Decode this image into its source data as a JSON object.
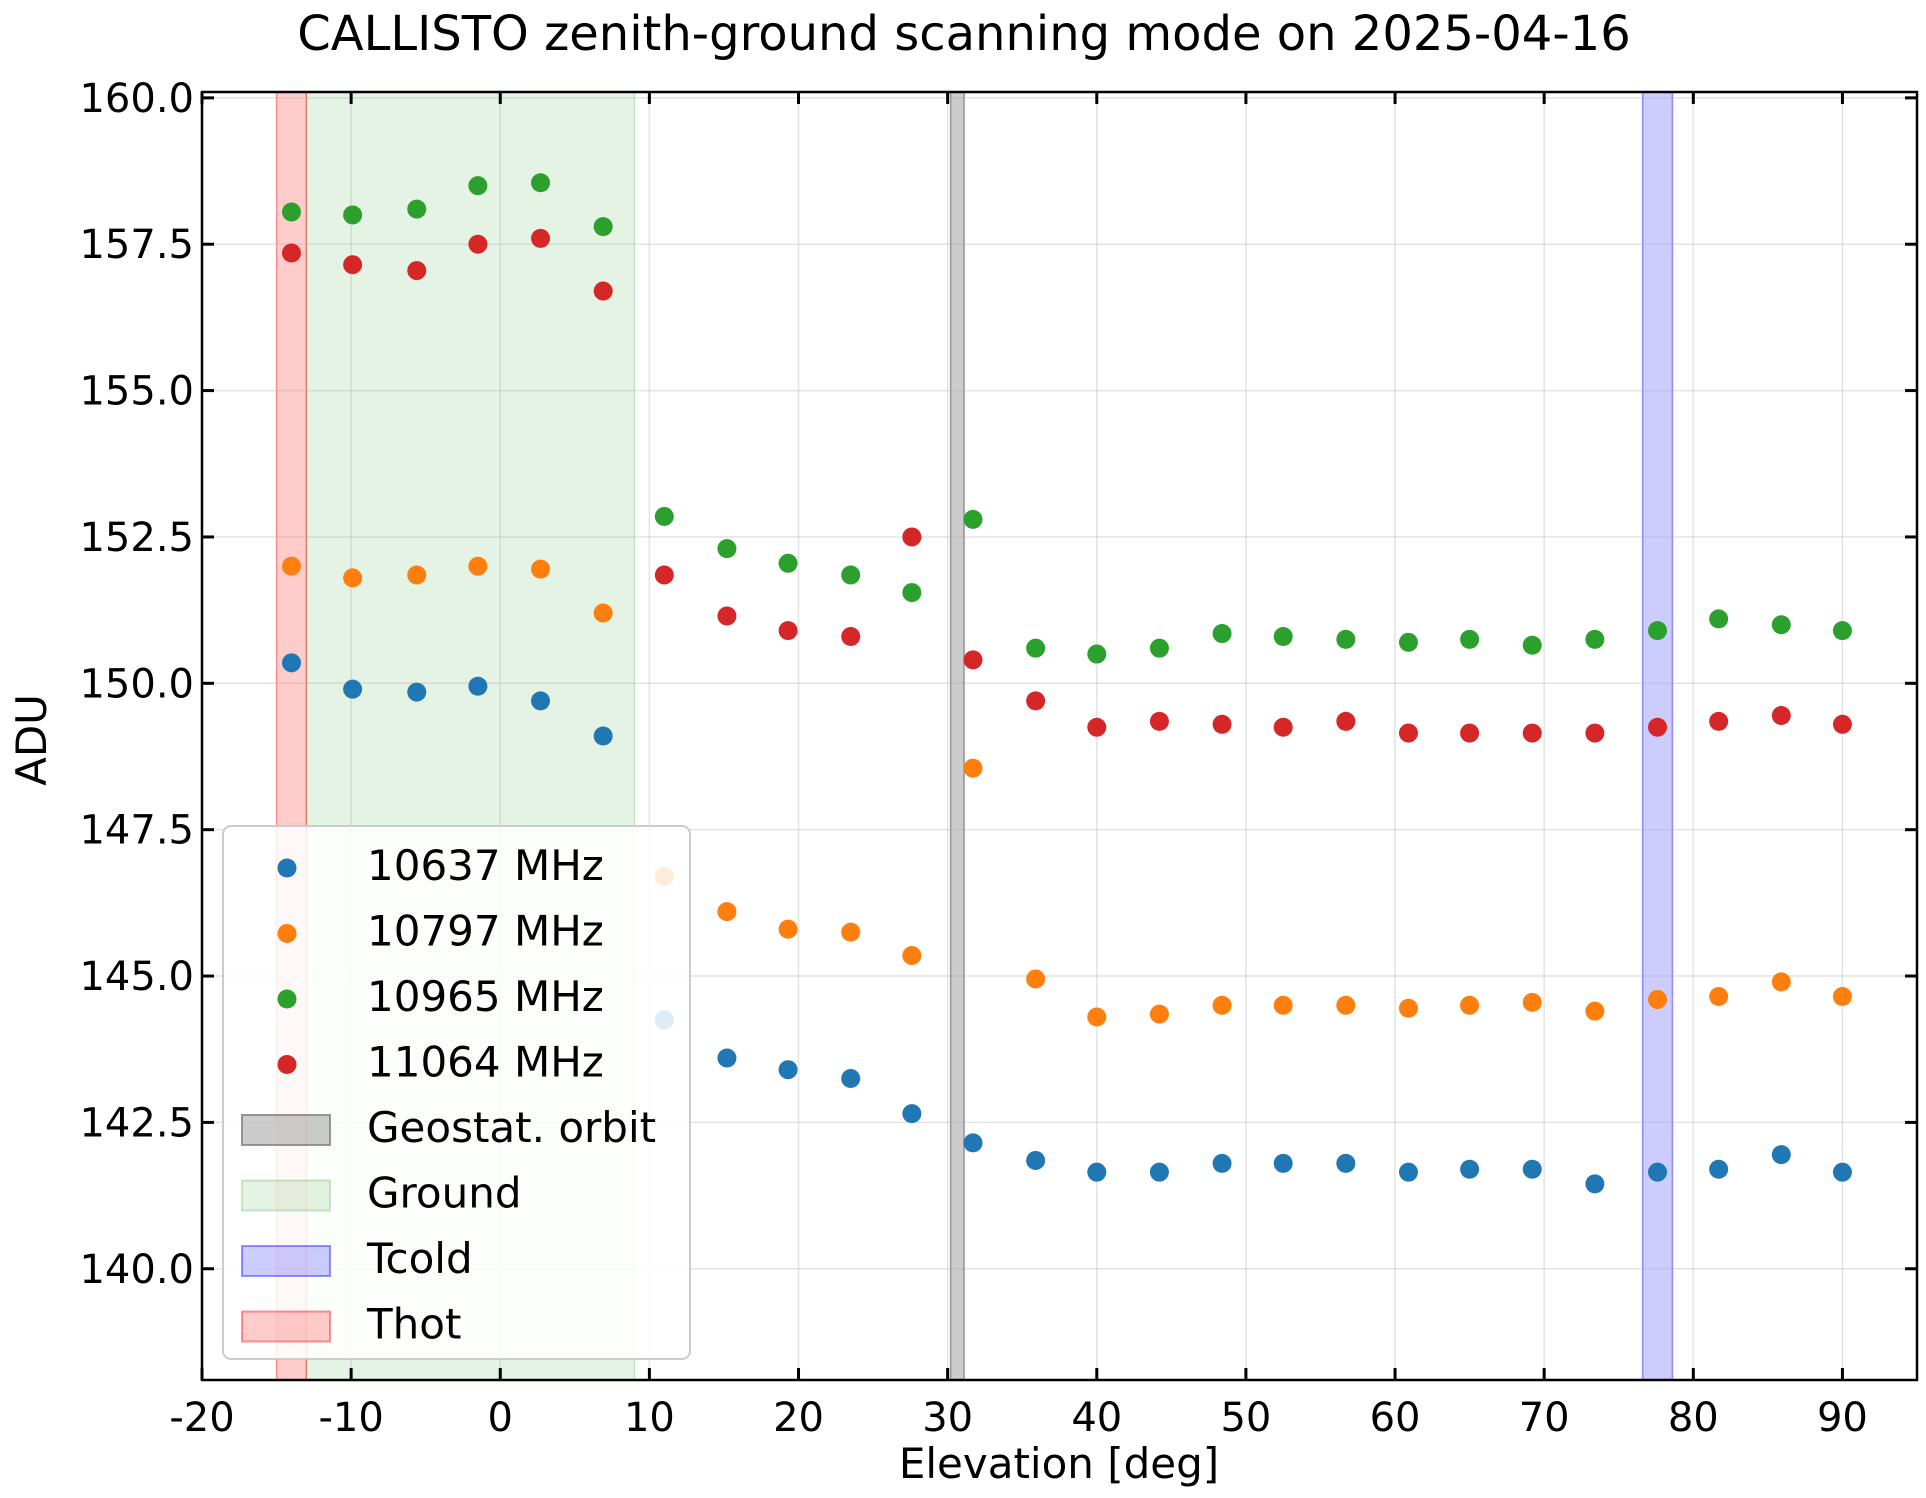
{
  "chart_data": {
    "type": "scatter",
    "title": "CALLISTO zenith-ground scanning mode on 2025-04-16",
    "xlabel": "Elevation [deg]",
    "ylabel": "ADU",
    "xlim": [
      -20,
      95
    ],
    "ylim": [
      138.1,
      160.1
    ],
    "xticks": [
      -20,
      -10,
      0,
      10,
      20,
      30,
      40,
      50,
      60,
      70,
      80,
      90
    ],
    "xtick_labels": [
      "-20",
      "-10",
      "0",
      "10",
      "20",
      "30",
      "40",
      "50",
      "60",
      "70",
      "80",
      "90"
    ],
    "yticks": [
      140.0,
      142.5,
      145.0,
      147.5,
      150.0,
      152.5,
      155.0,
      157.5,
      160.0
    ],
    "ytick_labels": [
      "140.0",
      "142.5",
      "145.0",
      "147.5",
      "150.0",
      "152.5",
      "155.0",
      "157.5",
      "160.0"
    ],
    "grid": true,
    "legend_position": "lower-left",
    "x": [
      -14,
      -9.9,
      -5.6,
      -1.5,
      2.7,
      6.9,
      11,
      15.2,
      19.3,
      23.5,
      27.6,
      31.7,
      35.9,
      40,
      44.2,
      48.4,
      52.5,
      56.7,
      60.9,
      65,
      69.2,
      73.4,
      77.6,
      81.7,
      85.9,
      90
    ],
    "series": [
      {
        "name": "10637 MHz",
        "color": "#1f77b4",
        "values": [
          150.35,
          149.9,
          149.85,
          149.95,
          149.7,
          149.1,
          144.25,
          143.6,
          143.4,
          143.25,
          142.65,
          142.15,
          141.85,
          141.65,
          141.65,
          141.8,
          141.8,
          141.8,
          141.65,
          141.7,
          141.7,
          141.45,
          141.65,
          141.7,
          141.95,
          141.65
        ]
      },
      {
        "name": "10797 MHz",
        "color": "#ff7f0e",
        "values": [
          152.0,
          151.8,
          151.85,
          152.0,
          151.95,
          151.2,
          146.7,
          146.1,
          145.8,
          145.75,
          145.35,
          148.55,
          144.95,
          144.3,
          144.35,
          144.5,
          144.5,
          144.5,
          144.45,
          144.5,
          144.55,
          144.4,
          144.6,
          144.65,
          144.9,
          144.65
        ]
      },
      {
        "name": "10965 MHz",
        "color": "#2ca02c",
        "values": [
          158.05,
          158.0,
          158.1,
          158.5,
          158.55,
          157.8,
          152.85,
          152.3,
          152.05,
          151.85,
          151.55,
          152.8,
          150.6,
          150.5,
          150.6,
          150.85,
          150.8,
          150.75,
          150.7,
          150.75,
          150.65,
          150.75,
          150.9,
          151.1,
          151.0,
          150.9
        ]
      },
      {
        "name": "11064 MHz",
        "color": "#d62728",
        "values": [
          157.35,
          157.15,
          157.05,
          157.5,
          157.6,
          156.7,
          151.85,
          151.15,
          150.9,
          150.8,
          152.5,
          150.4,
          149.7,
          149.25,
          149.35,
          149.3,
          149.25,
          149.35,
          149.15,
          149.15,
          149.15,
          149.15,
          149.25,
          149.35,
          149.45,
          149.3
        ]
      }
    ],
    "bands": [
      {
        "name": "Geostat. orbit",
        "color": "#808080",
        "opacity": 0.4,
        "x_range": [
          30.2,
          31.1
        ]
      },
      {
        "name": "Ground",
        "color": "#2ca02c",
        "opacity": 0.12,
        "x_range": [
          -13,
          9
        ]
      },
      {
        "name": "Tcold",
        "color": "#0000ff",
        "opacity": 0.2,
        "x_range": [
          76.6,
          78.6
        ]
      },
      {
        "name": "Thot",
        "color": "#ff0000",
        "opacity": 0.2,
        "x_range": [
          -15,
          -13
        ]
      }
    ]
  }
}
